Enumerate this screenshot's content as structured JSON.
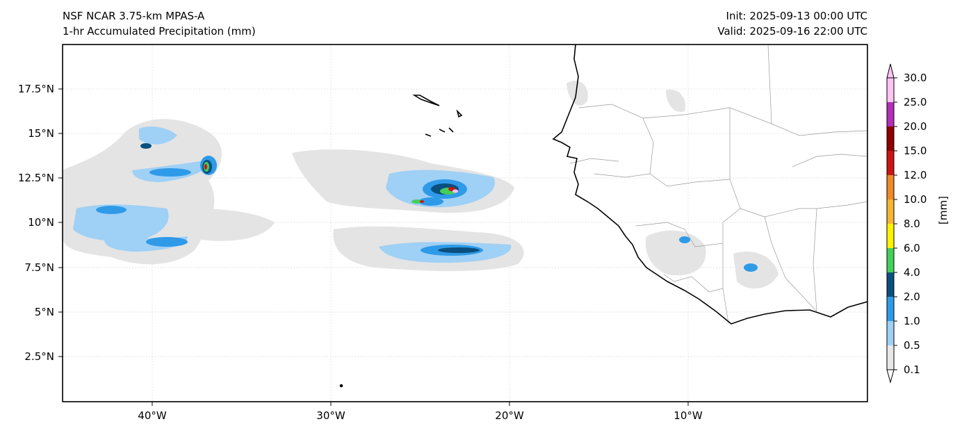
{
  "header": {
    "model": "NSF NCAR 3.75-km MPAS-A",
    "field": "1-hr Accumulated Precipitation (mm)",
    "init": "Init: 2025-09-13 00:00 UTC",
    "valid": "Valid: 2025-09-16 22:00 UTC"
  },
  "axes": {
    "lat_ticks": [
      "17.5°N",
      "15°N",
      "12.5°N",
      "10°N",
      "7.5°N",
      "5°N",
      "2.5°N"
    ],
    "lon_ticks": [
      "40°W",
      "30°W",
      "20°W",
      "10°W"
    ]
  },
  "colorbar": {
    "label": "[mm]",
    "ticks": [
      "30.0",
      "25.0",
      "20.0",
      "15.0",
      "12.0",
      "10.0",
      "8.0",
      "6.0",
      "4.0",
      "2.0",
      "1.0",
      "0.5",
      "0.1"
    ],
    "colors": [
      "#e8e8e8",
      "#9fd0f5",
      "#2f9ae8",
      "#0a4f7d",
      "#43cf5a",
      "#fff200",
      "#f6b633",
      "#ee8a28",
      "#cc1414",
      "#8f0000",
      "#b42eb8",
      "#ffc4f3"
    ]
  }
}
